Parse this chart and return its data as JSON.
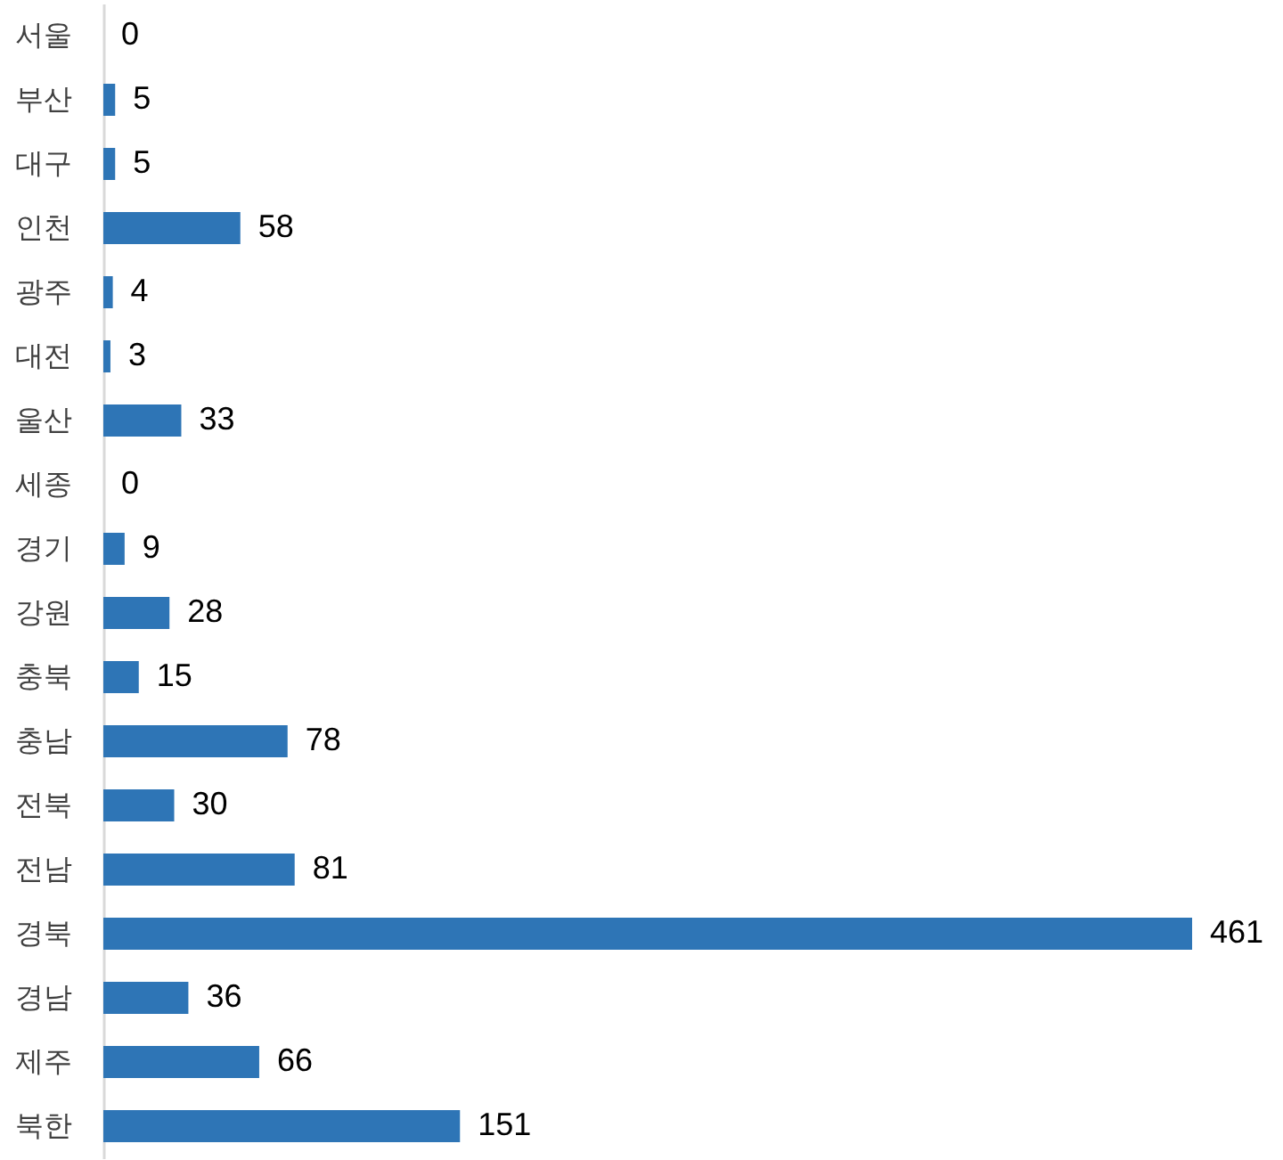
{
  "chart_data": {
    "type": "bar",
    "orientation": "horizontal",
    "categories": [
      "서울",
      "부산",
      "대구",
      "인천",
      "광주",
      "대전",
      "울산",
      "세종",
      "경기",
      "강원",
      "충북",
      "충남",
      "전북",
      "전남",
      "경북",
      "경남",
      "제주",
      "북한"
    ],
    "values": [
      0,
      5,
      5,
      58,
      4,
      3,
      33,
      0,
      9,
      28,
      15,
      78,
      30,
      81,
      461,
      36,
      66,
      151
    ],
    "color": "#2e75b6",
    "data_labels": true,
    "grid": false,
    "tick_labels": "y"
  }
}
